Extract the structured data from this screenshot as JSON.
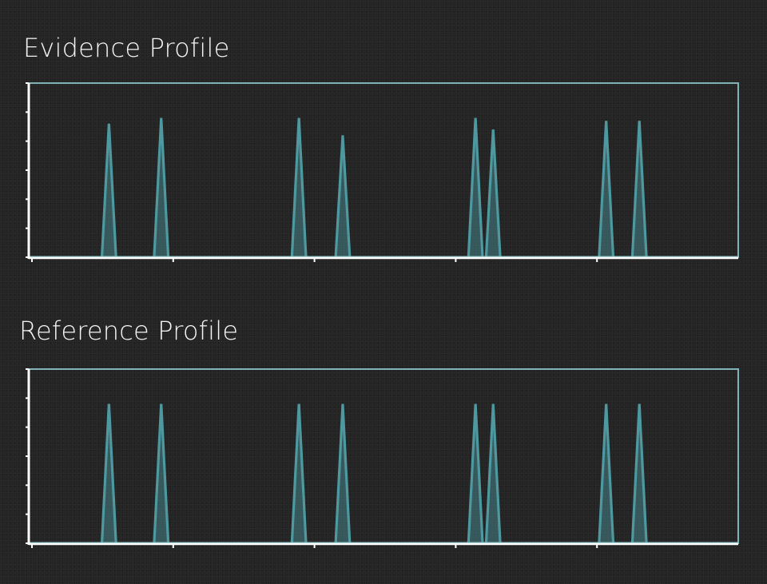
{
  "chart_data": [
    {
      "type": "line",
      "title": "Evidence Profile",
      "xlabel": "",
      "ylabel": "",
      "xlim": [
        0,
        100
      ],
      "ylim": [
        0,
        6
      ],
      "x_ticks": [
        0,
        20,
        40,
        60,
        80
      ],
      "y_ticks": [
        0,
        1,
        2,
        3,
        4,
        5,
        6
      ],
      "tick_labels_visible": false,
      "grid": false,
      "legend": "none",
      "series": [
        {
          "peaks": [
            {
              "x": 10.9,
              "height": 4.6
            },
            {
              "x": 18.3,
              "height": 4.8
            },
            {
              "x": 37.8,
              "height": 4.8
            },
            {
              "x": 44.0,
              "height": 4.2
            },
            {
              "x": 62.8,
              "height": 4.8
            },
            {
              "x": 65.3,
              "height": 4.4
            },
            {
              "x": 81.3,
              "height": 4.7
            },
            {
              "x": 86.0,
              "height": 4.7
            }
          ],
          "peak_half_width": 1.0
        }
      ],
      "colors": {
        "line": "#4e98a0",
        "frame": "#7fb3b7",
        "axis": "#ffffff"
      }
    },
    {
      "type": "line",
      "title": "Reference Profile",
      "xlabel": "",
      "ylabel": "",
      "xlim": [
        0,
        100
      ],
      "ylim": [
        0,
        6
      ],
      "x_ticks": [
        0,
        20,
        40,
        60,
        80
      ],
      "y_ticks": [
        0,
        1,
        2,
        3,
        4,
        5,
        6
      ],
      "tick_labels_visible": false,
      "grid": false,
      "legend": "none",
      "series": [
        {
          "peaks": [
            {
              "x": 10.9,
              "height": 4.8
            },
            {
              "x": 18.3,
              "height": 4.8
            },
            {
              "x": 37.8,
              "height": 4.8
            },
            {
              "x": 44.0,
              "height": 4.8
            },
            {
              "x": 62.8,
              "height": 4.8
            },
            {
              "x": 65.3,
              "height": 4.8
            },
            {
              "x": 81.3,
              "height": 4.8
            },
            {
              "x": 86.0,
              "height": 4.8
            }
          ],
          "peak_half_width": 1.0
        }
      ],
      "colors": {
        "line": "#4e98a0",
        "frame": "#7fb3b7",
        "axis": "#ffffff"
      }
    }
  ]
}
